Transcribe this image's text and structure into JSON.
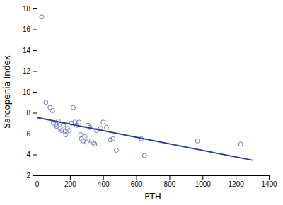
{
  "chart_data": {
    "type": "scatter",
    "xlabel": "PTH",
    "ylabel": "Sarcopenia Index",
    "series": [
      {
        "type": "scatter",
        "marker": "open-circle",
        "color": "#7080b8",
        "x": [
          30,
          55,
          80,
          95,
          100,
          115,
          120,
          130,
          140,
          150,
          160,
          170,
          175,
          185,
          195,
          210,
          220,
          230,
          240,
          255,
          265,
          270,
          280,
          290,
          300,
          310,
          320,
          330,
          340,
          350,
          360,
          385,
          400,
          420,
          445,
          460,
          480,
          630,
          650,
          970,
          1230
        ],
        "values": [
          17.2,
          9.0,
          8.5,
          8.2,
          7.0,
          6.9,
          6.7,
          7.2,
          6.5,
          6.3,
          6.8,
          6.2,
          5.9,
          6.5,
          6.3,
          7.0,
          8.5,
          7.1,
          6.8,
          7.1,
          5.9,
          5.5,
          5.3,
          5.7,
          5.2,
          6.8,
          6.6,
          5.3,
          5.1,
          5.0,
          6.3,
          6.5,
          7.1,
          6.6,
          5.4,
          5.5,
          4.4,
          5.5,
          3.9,
          5.3,
          5.0
        ]
      },
      {
        "type": "line",
        "color": "#2e3d8f",
        "x": [
          0,
          1300
        ],
        "values": [
          7.55,
          3.45
        ]
      }
    ],
    "xlim": [
      0,
      1400
    ],
    "ylim": [
      2,
      18
    ],
    "xticks": [
      0,
      200,
      400,
      600,
      800,
      1000,
      1200,
      1400
    ],
    "yticks": [
      2,
      4,
      6,
      8,
      10,
      12,
      14,
      16,
      18
    ],
    "grid": false
  }
}
